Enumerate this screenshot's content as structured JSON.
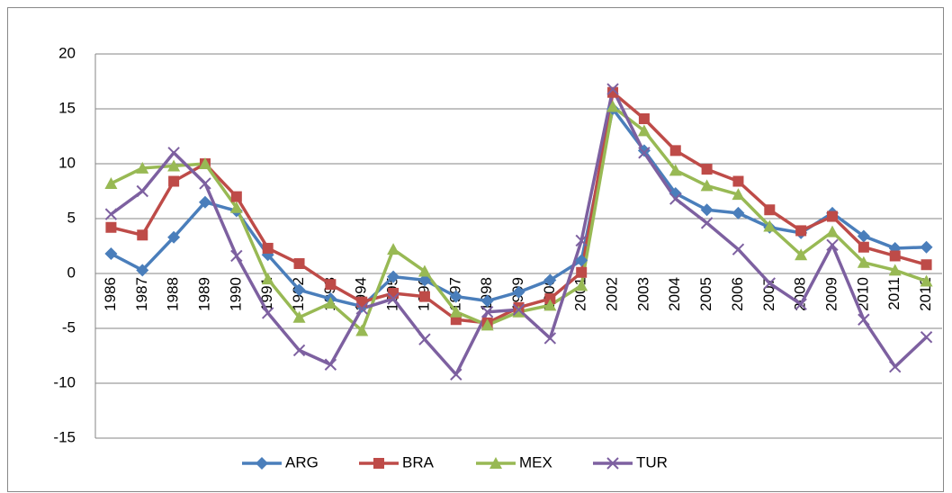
{
  "chart_data": {
    "type": "line",
    "categories": [
      "1986",
      "1987",
      "1988",
      "1989",
      "1990",
      "1991",
      "1992",
      "1993",
      "1994",
      "1995",
      "1996",
      "1997",
      "1998",
      "1999",
      "2000",
      "2001",
      "2002",
      "2003",
      "2004",
      "2005",
      "2006",
      "2007",
      "2008",
      "2009",
      "2010",
      "2011",
      "2012"
    ],
    "series": [
      {
        "name": "ARG",
        "color": "#4a7ebb",
        "marker": "diamond",
        "values": [
          1.8,
          0.3,
          3.3,
          6.5,
          5.7,
          1.7,
          -1.5,
          -2.3,
          -3.0,
          -0.3,
          -0.6,
          -2.1,
          -2.5,
          -1.7,
          -0.6,
          1.2,
          15.0,
          11.2,
          7.3,
          5.8,
          5.5,
          4.2,
          3.7,
          5.5,
          3.4,
          2.3,
          2.4
        ]
      },
      {
        "name": "BRA",
        "color": "#be4b48",
        "marker": "square",
        "values": [
          4.2,
          3.5,
          8.4,
          10.0,
          7.0,
          2.3,
          0.9,
          -1.0,
          -2.6,
          -1.8,
          -2.1,
          -4.2,
          -4.5,
          -3.1,
          -2.3,
          0.1,
          16.5,
          14.1,
          11.2,
          9.5,
          8.4,
          5.8,
          3.9,
          5.2,
          2.4,
          1.6,
          0.8
        ]
      },
      {
        "name": "MEX",
        "color": "#98b954",
        "marker": "triangle",
        "values": [
          8.2,
          9.6,
          9.8,
          10.0,
          6.0,
          -0.5,
          -4.0,
          -2.7,
          -5.2,
          2.2,
          0.2,
          -3.5,
          -4.7,
          -3.5,
          -2.9,
          -1.1,
          15.2,
          13.0,
          9.4,
          8.0,
          7.2,
          4.3,
          1.7,
          3.8,
          1.0,
          0.3,
          -0.7
        ]
      },
      {
        "name": "TUR",
        "color": "#7d60a0",
        "marker": "x",
        "values": [
          5.4,
          7.5,
          11.0,
          8.2,
          1.6,
          -3.6,
          -7.0,
          -8.3,
          -3.2,
          -2.3,
          -6.0,
          -9.2,
          -3.5,
          -3.3,
          -5.9,
          3.0,
          16.8,
          11.0,
          6.8,
          4.6,
          2.2,
          -0.9,
          -2.8,
          2.6,
          -4.2,
          -8.5,
          -5.8
        ]
      }
    ],
    "ylim": [
      -15,
      20
    ],
    "yticks": [
      -15,
      -10,
      -5,
      0,
      5,
      10,
      15,
      20
    ],
    "grid": true,
    "legend": "bottom"
  }
}
